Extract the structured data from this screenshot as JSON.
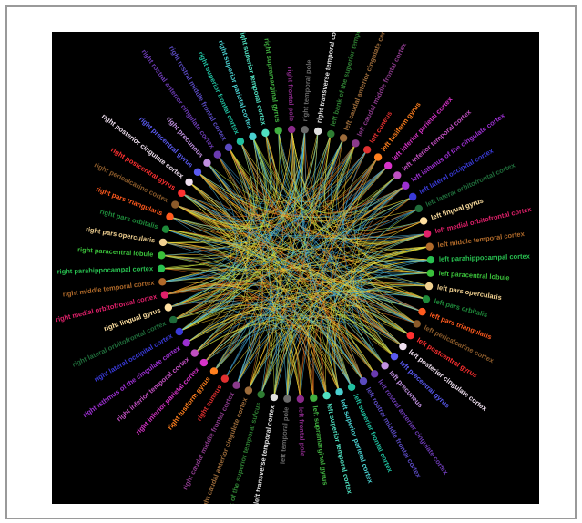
{
  "figure": {
    "nodes": [
      {
        "label": "left bank of the superior temporal sulcus",
        "color": "#2e7d32"
      },
      {
        "label": "left caudal anterior cingulate cortex",
        "color": "#9c6b3a"
      },
      {
        "label": "left caudal middle frontal cortex",
        "color": "#8b3a8b"
      },
      {
        "label": "left cuneus",
        "color": "#e03030"
      },
      {
        "label": "left fusiform gyrus",
        "color": "#ff7f1e"
      },
      {
        "label": "left inferior parietal cortex",
        "color": "#d632c8"
      },
      {
        "label": "left inferior temporal cortex",
        "color": "#c04fc0"
      },
      {
        "label": "left isthmus of the cingulate cortex",
        "color": "#9b2fd0"
      },
      {
        "label": "left lateral occipital cortex",
        "color": "#3a3ad8"
      },
      {
        "label": "left lateral orbitofrontal cortex",
        "color": "#1f6b3a"
      },
      {
        "label": "left lingual gyrus",
        "color": "#ffe0a0"
      },
      {
        "label": "left medial orbitofrontal cortex",
        "color": "#e0206a"
      },
      {
        "label": "left middle temporal cortex",
        "color": "#b06a2a"
      },
      {
        "label": "left parahippocampal cortex",
        "color": "#28c050"
      },
      {
        "label": "left paracentral lobule",
        "color": "#3ac03a"
      },
      {
        "label": "left pars opercularis",
        "color": "#f0d090"
      },
      {
        "label": "left pars orbitalis",
        "color": "#1e8a3a"
      },
      {
        "label": "left pars triangularis",
        "color": "#ff5a1e"
      },
      {
        "label": "left pericalcarine cortex",
        "color": "#8a5a2a"
      },
      {
        "label": "left postcentral gyrus",
        "color": "#ff3030"
      },
      {
        "label": "left posterior cingulate cortex",
        "color": "#f0e0f0"
      },
      {
        "label": "left precentral gyrus",
        "color": "#5a5af0"
      },
      {
        "label": "left precuneus",
        "color": "#c090e0"
      },
      {
        "label": "left rostral anterior cingulate cortex",
        "color": "#6a3ab0"
      },
      {
        "label": "left rostral middle frontal cortex",
        "color": "#5a4ac0"
      },
      {
        "label": "left superior frontal cortex",
        "color": "#20c0a0"
      },
      {
        "label": "left superior parietal cortex",
        "color": "#4ad0d0"
      },
      {
        "label": "left superior temporal cortex",
        "color": "#50e0c0"
      },
      {
        "label": "left supramarginal gyrus",
        "color": "#40b040"
      },
      {
        "label": "left frontal pole",
        "color": "#8a2a8a"
      },
      {
        "label": "left temporal pole",
        "color": "#6a6a6a"
      },
      {
        "label": "left transverse temporal cortex",
        "color": "#e0e0e0"
      },
      {
        "label": "right bank of the superior temporal sulcus",
        "color": "#2e7d32"
      },
      {
        "label": "right caudal anterior cingulate cortex",
        "color": "#9c6b3a"
      },
      {
        "label": "right caudal middle frontal cortex",
        "color": "#8b3a8b"
      },
      {
        "label": "right cuneus",
        "color": "#e03030"
      },
      {
        "label": "right fusiform gyrus",
        "color": "#ff7f1e"
      },
      {
        "label": "right inferior parietal cortex",
        "color": "#d632c8"
      },
      {
        "label": "right inferior temporal cortex",
        "color": "#c04fc0"
      },
      {
        "label": "right isthmus of the cingulate cortex",
        "color": "#9b2fd0"
      },
      {
        "label": "right lateral occipital cortex",
        "color": "#3a3ad8"
      },
      {
        "label": "right lateral orbitofrontal cortex",
        "color": "#1f6b3a"
      },
      {
        "label": "right lingual gyrus",
        "color": "#ffe0a0"
      },
      {
        "label": "right medial orbitofrontal cortex",
        "color": "#e0206a"
      },
      {
        "label": "right middle temporal cortex",
        "color": "#b06a2a"
      },
      {
        "label": "right parahippocampal cortex",
        "color": "#28c050"
      },
      {
        "label": "right paracentral lobule",
        "color": "#3ac03a"
      },
      {
        "label": "right pars opercularis",
        "color": "#f0d090"
      },
      {
        "label": "right pars orbitalis",
        "color": "#1e8a3a"
      },
      {
        "label": "right pars triangularis",
        "color": "#ff5a1e"
      },
      {
        "label": "right pericalcarine cortex",
        "color": "#8a5a2a"
      },
      {
        "label": "right postcentral gyrus",
        "color": "#ff3030"
      },
      {
        "label": "right posterior cingulate cortex",
        "color": "#f0e0f0"
      },
      {
        "label": "right precentral gyrus",
        "color": "#5a5af0"
      },
      {
        "label": "right precuneus",
        "color": "#c090e0"
      },
      {
        "label": "right rostral anterior cingulate cortex",
        "color": "#6a3ab0"
      },
      {
        "label": "right rostral middle frontal cortex",
        "color": "#5a4ac0"
      },
      {
        "label": "right superior frontal cortex",
        "color": "#20c0a0"
      },
      {
        "label": "right superior parietal cortex",
        "color": "#4ad0d0"
      },
      {
        "label": "right superior temporal cortex",
        "color": "#50e0c0"
      },
      {
        "label": "right supramarginal gyrus",
        "color": "#40b040"
      },
      {
        "label": "right frontal pole",
        "color": "#8a2a8a"
      },
      {
        "label": "right temporal pole",
        "color": "#6a6a6a"
      },
      {
        "label": "right transverse temporal cortex",
        "color": "#e0e0e0"
      }
    ]
  }
}
